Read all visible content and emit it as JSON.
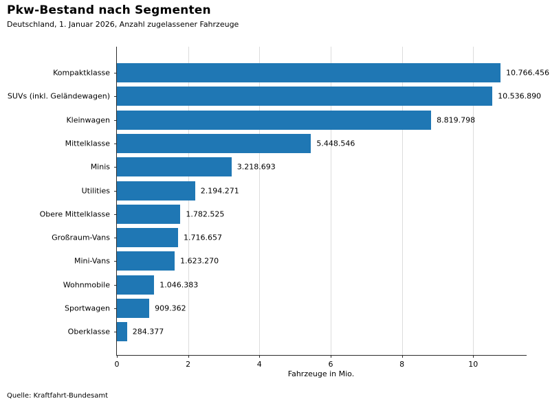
{
  "header": {
    "title": "Pkw-Bestand nach Segmenten",
    "subtitle": "Deutschland, 1. Januar 2026, Anzahl zugelassener Fahrzeuge"
  },
  "chart_data": {
    "type": "bar",
    "orientation": "horizontal",
    "title": "Pkw-Bestand nach Segmenten",
    "subtitle": "Deutschland, 1. Januar 2026, Anzahl zugelassener Fahrzeuge",
    "categories": [
      "Kompaktklasse",
      "SUVs (inkl. Geländewagen)",
      "Kleinwagen",
      "Mittelklasse",
      "Minis",
      "Utilities",
      "Obere Mittelklasse",
      "Großraum-Vans",
      "Mini-Vans",
      "Wohnmobile",
      "Sportwagen",
      "Oberklasse"
    ],
    "values": [
      10766456,
      10536890,
      8819798,
      5448546,
      3218693,
      2194271,
      1782525,
      1716657,
      1623270,
      1046383,
      909362,
      284377
    ],
    "value_labels": [
      "10.766.456",
      "10.536.890",
      "8.819.798",
      "5.448.546",
      "3.218.693",
      "2.194.271",
      "1.782.525",
      "1.716.657",
      "1.623.270",
      "1.046.383",
      "909.362",
      "284.377"
    ],
    "xlabel": "Fahrzeuge in Mio.",
    "xticks": [
      0,
      2,
      4,
      6,
      8,
      10
    ],
    "xtick_labels": [
      "0",
      "2",
      "4",
      "6",
      "8",
      "10"
    ],
    "xlim": [
      0,
      11.5
    ],
    "grid": "vertical",
    "gridline_color": "#dcdcdc",
    "bar_color": "#1f77b4",
    "legend": "none"
  },
  "footer": {
    "source": "Quelle: Kraftfahrt-Bundesamt"
  }
}
